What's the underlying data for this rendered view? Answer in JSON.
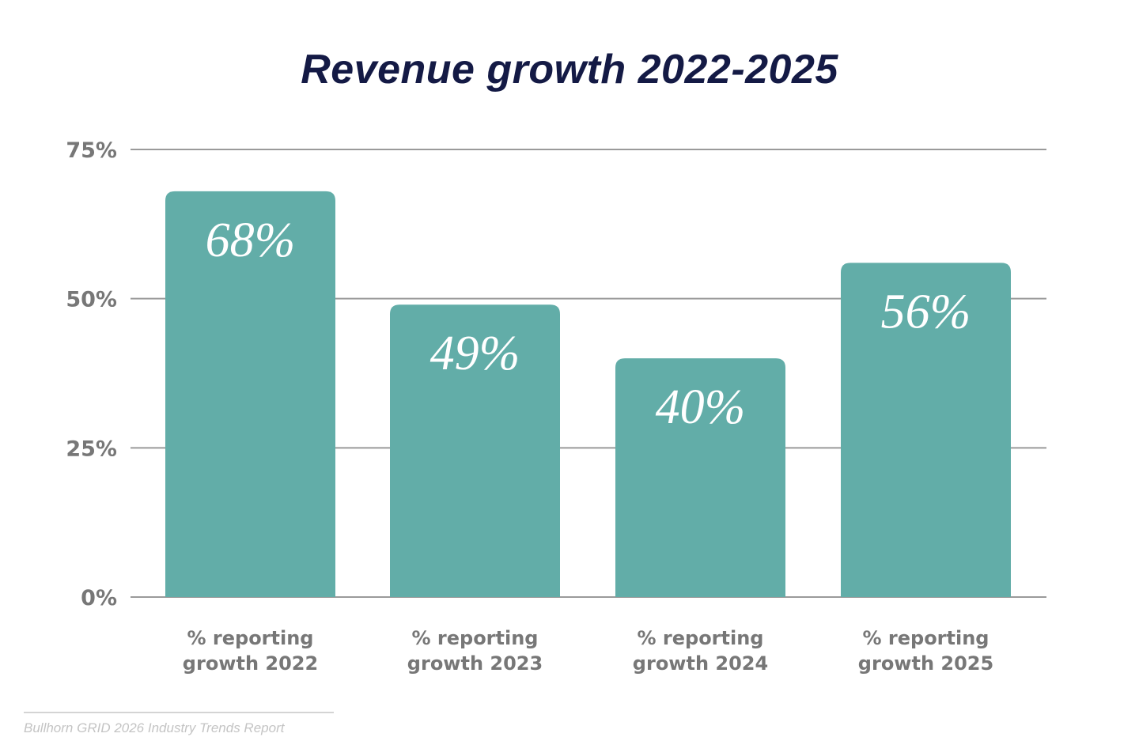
{
  "chart_data": {
    "type": "bar",
    "title": "Revenue growth 2022-2025",
    "categories": [
      "% reporting growth 2022",
      "% reporting growth 2023",
      "% reporting growth 2024",
      "% reporting growth 2025"
    ],
    "category_lines": [
      [
        "% reporting",
        "growth 2022"
      ],
      [
        "% reporting",
        "growth 2023"
      ],
      [
        "% reporting",
        "growth 2024"
      ],
      [
        "% reporting",
        "growth 2025"
      ]
    ],
    "values": [
      68,
      49,
      40,
      56
    ],
    "data_labels": [
      "68%",
      "49%",
      "40%",
      "56%"
    ],
    "yticks": [
      0,
      25,
      50,
      75
    ],
    "ytick_labels": [
      "0%",
      "25%",
      "50%",
      "75%"
    ],
    "ylim": [
      0,
      75
    ],
    "grid": true,
    "xlabel": "",
    "ylabel": "",
    "bar_color": "#62ada8",
    "title_color": "#141a45"
  },
  "source": "Bullhorn GRID 2026 Industry Trends Report"
}
